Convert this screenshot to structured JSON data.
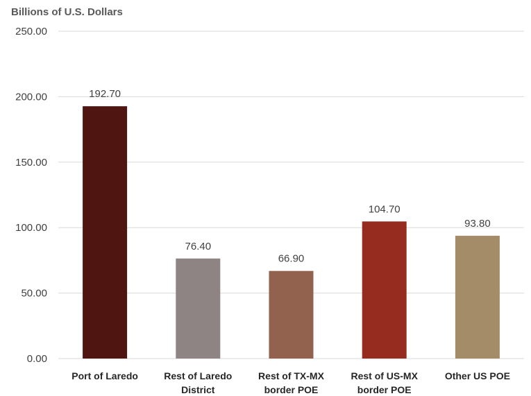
{
  "chart_data": {
    "type": "bar",
    "title": "",
    "ylabel": "Billions of U.S. Dollars",
    "xlabel": "",
    "ylim": [
      0,
      250
    ],
    "yticks": [
      "0.00",
      "50.00",
      "100.00",
      "150.00",
      "200.00",
      "250.00"
    ],
    "grid": true,
    "categories": [
      [
        "Port of Laredo"
      ],
      [
        "Rest of Laredo",
        "District"
      ],
      [
        "Rest of TX-MX",
        "border POE"
      ],
      [
        "Rest of US-MX",
        "border POE"
      ],
      [
        "Other US POE"
      ]
    ],
    "values": [
      192.7,
      76.4,
      66.9,
      104.7,
      93.8
    ],
    "value_labels": [
      "192.70",
      "76.40",
      "66.90",
      "104.70",
      "93.80"
    ],
    "colors": [
      "#4f1611",
      "#8e8483",
      "#93624f",
      "#962b1f",
      "#a58c69"
    ]
  }
}
